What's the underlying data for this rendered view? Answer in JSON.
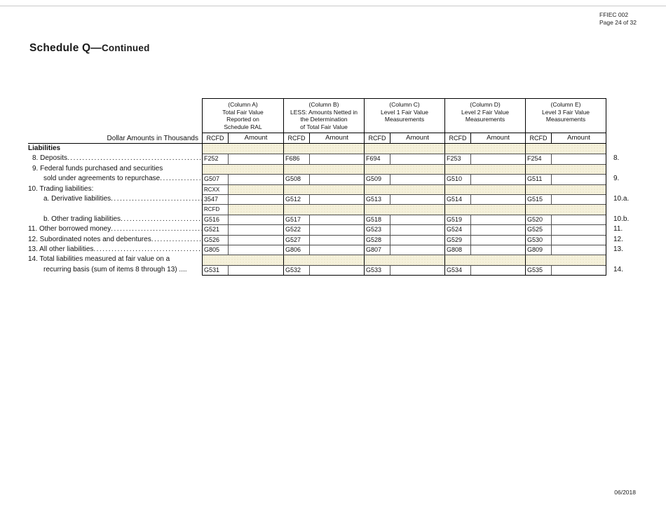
{
  "page": {
    "form_code": "FFIEC 002",
    "page_number": "Page 24 of 32",
    "title": "Schedule Q—",
    "title_continued": "Continued",
    "footer_date": "06/2018"
  },
  "table": {
    "dollar_amounts_note": "Dollar Amounts in Thousands",
    "code_column_header": "RCFD",
    "amount_column_header": "Amount",
    "colors": {
      "shaded_cell": "#F5F1DB",
      "border": "#000000"
    },
    "columns": [
      {
        "title_lines": [
          "(Column  A)",
          "Total Fair Value",
          "Reported on",
          "Schedule RAL"
        ]
      },
      {
        "title_lines": [
          "(Column B)",
          "LESS: Amounts Netted in",
          "the Determination",
          "of Total Fair Value"
        ]
      },
      {
        "title_lines": [
          "(Column C)",
          "Level 1 Fair Value",
          "Measurements"
        ]
      },
      {
        "title_lines": [
          "(Column D)",
          "Level 2 Fair Value",
          "Measurements"
        ]
      },
      {
        "title_lines": [
          "(Column E)",
          "Level 3 Fair Value",
          "Measurements"
        ]
      }
    ],
    "rows": [
      {
        "type": "band",
        "label": "Liabilities",
        "bold": true,
        "indent": 0
      },
      {
        "type": "data",
        "label": "8. Deposits",
        "leader": true,
        "indent": 1,
        "item": "8.",
        "codes": [
          "F252",
          "F686",
          "F694",
          "F253",
          "F254"
        ]
      },
      {
        "type": "band",
        "label": "9. Federal funds purchased and securities",
        "indent": 1
      },
      {
        "type": "data",
        "label": "sold under agreements to repurchase",
        "leader": true,
        "indent": 2,
        "item": "9.",
        "codes": [
          "G507",
          "G508",
          "G509",
          "G510",
          "G511"
        ]
      },
      {
        "type": "codeband",
        "label": "10. Trading liabilities:",
        "indent": 0,
        "code": "RCXX"
      },
      {
        "type": "data",
        "label": "a. Derivative liabilities",
        "leader": true,
        "indent": 2,
        "item": "10.a.",
        "codes": [
          "3547",
          "G512",
          "G513",
          "G514",
          "G515"
        ]
      },
      {
        "type": "codeband",
        "label": "",
        "indent": 0,
        "code": "RCFD"
      },
      {
        "type": "data",
        "label": "b. Other trading liabilities ",
        "leader": true,
        "indent": 2,
        "item": "10.b.",
        "codes": [
          "G516",
          "G517",
          "G518",
          "G519",
          "G520"
        ]
      },
      {
        "type": "data",
        "label": "11. Other borrowed money ",
        "leader": true,
        "indent": 0,
        "item": "11.",
        "codes": [
          "G521",
          "G522",
          "G523",
          "G524",
          "G525"
        ]
      },
      {
        "type": "data",
        "label": "12. Subordinated notes and debentures",
        "leader": true,
        "indent": 0,
        "item": "12.",
        "codes": [
          "G526",
          "G527",
          "G528",
          "G529",
          "G530"
        ]
      },
      {
        "type": "data",
        "label": "13. All other liabilities ",
        "leader": true,
        "indent": 0,
        "item": "13.",
        "codes": [
          "G805",
          "G806",
          "G807",
          "G808",
          "G809"
        ]
      },
      {
        "type": "band",
        "label": "14. Total liabilities measured at fair value on a",
        "indent": 0
      },
      {
        "type": "data",
        "label": "recurring basis (sum of items 8 through 13) ....",
        "leader": false,
        "indent": 2,
        "item": "14.",
        "codes": [
          "G531",
          "G532",
          "G533",
          "G534",
          "G535"
        ]
      }
    ]
  }
}
